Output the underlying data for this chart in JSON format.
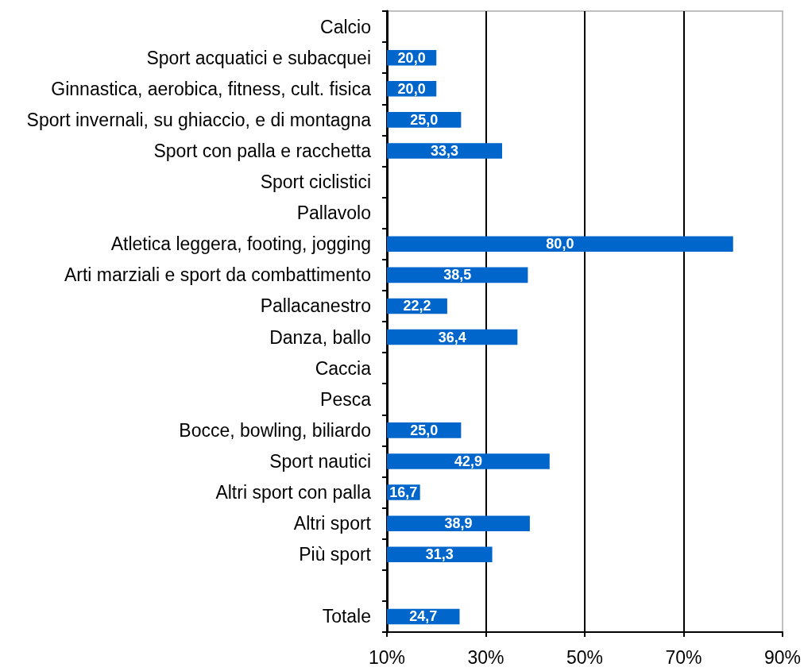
{
  "chart_data": {
    "type": "bar",
    "orientation": "horizontal",
    "categories": [
      "Calcio",
      "Sport acquatici e subacquei",
      "Ginnastica, aerobica, fitness, cult. fisica",
      "Sport invernali, su ghiaccio, e di montagna",
      "Sport con palla e racchetta",
      "Sport ciclistici",
      "Pallavolo",
      "Atletica leggera, footing, jogging",
      "Arti marziali e sport da combattimento",
      "Pallacanestro",
      "Danza, ballo",
      "Caccia",
      "Pesca",
      "Bocce, bowling, biliardo",
      "Sport nautici",
      "Altri sport con palla",
      "Altri sport",
      "Più sport",
      null,
      "Totale"
    ],
    "values": [
      null,
      20.0,
      20.0,
      25.0,
      33.3,
      null,
      null,
      80.0,
      38.5,
      22.2,
      36.4,
      null,
      null,
      25.0,
      42.9,
      16.7,
      38.9,
      31.3,
      null,
      24.7
    ],
    "value_labels": [
      null,
      "20,0",
      "20,0",
      "25,0",
      "33,3",
      null,
      null,
      "80,0",
      "38,5",
      "22,2",
      "36,4",
      null,
      null,
      "25,0",
      "42,9",
      "16,7",
      "38,9",
      "31,3",
      null,
      "24,7"
    ],
    "color": "#0066cc",
    "xlim": [
      10,
      90
    ],
    "xticks": [
      {
        "value": 10,
        "label": "10%"
      },
      {
        "value": 30,
        "label": "30%"
      },
      {
        "value": 50,
        "label": "50%"
      },
      {
        "value": 70,
        "label": "70%"
      },
      {
        "value": 90,
        "label": "90%"
      }
    ],
    "grid": "x"
  }
}
